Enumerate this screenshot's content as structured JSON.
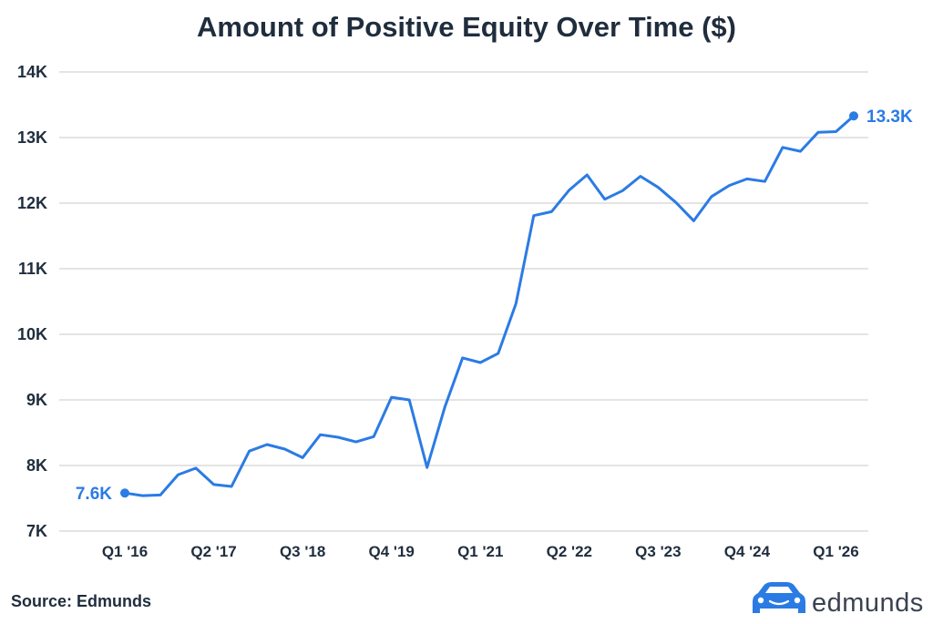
{
  "footer": {
    "source": "Source: Edmunds",
    "brand": "edmunds",
    "brand_icon": "car-icon"
  },
  "colors": {
    "series": "#2b7be4",
    "text": "#1f2d3d",
    "grid": "#c9c9c9",
    "brand": "#2b7be4"
  },
  "chart_data": {
    "type": "line",
    "title": "Amount of Positive Equity Over Time ($)",
    "xlabel": "",
    "ylabel": "",
    "ylim": [
      7000,
      14000
    ],
    "yticks": [
      7000,
      8000,
      9000,
      10000,
      11000,
      12000,
      13000,
      14000
    ],
    "ytick_labels": [
      "7K",
      "8K",
      "9K",
      "10K",
      "11K",
      "12K",
      "13K",
      "14K"
    ],
    "grid": true,
    "x_range": [
      "Q1 '16",
      "Q2 '26"
    ],
    "x_tick_labels": [
      {
        "label": "Q1 '16",
        "index": 0
      },
      {
        "label": "Q2 '17",
        "index": 5
      },
      {
        "label": "Q3 '18",
        "index": 10
      },
      {
        "label": "Q4 '19",
        "index": 15
      },
      {
        "label": "Q1 '21",
        "index": 20
      },
      {
        "label": "Q2 '22",
        "index": 25
      },
      {
        "label": "Q3 '23",
        "index": 30
      },
      {
        "label": "Q4 '24",
        "index": 35
      },
      {
        "label": "Q1 '26",
        "index": 40
      }
    ],
    "series": [
      {
        "values": [
          7580,
          7540,
          7550,
          7860,
          7960,
          7710,
          7680,
          8220,
          8320,
          8250,
          8120,
          8470,
          8430,
          8360,
          8440,
          9040,
          9000,
          7970,
          8890,
          9640,
          9570,
          9710,
          10470,
          11810,
          11870,
          12200,
          12430,
          12060,
          12190,
          12410,
          12240,
          12010,
          11730,
          12100,
          12270,
          12370,
          12330,
          12850,
          12790,
          13080,
          13090,
          13330
        ],
        "start_label": "7.6K",
        "end_label": "13.3K"
      }
    ]
  }
}
